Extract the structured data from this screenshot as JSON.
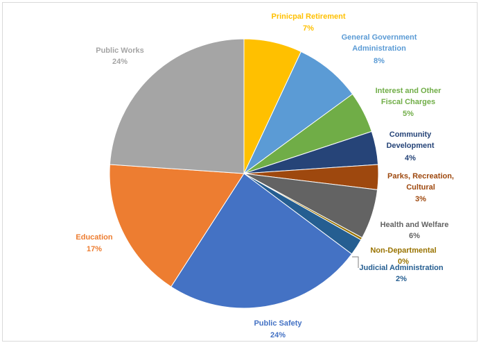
{
  "chart_data": {
    "type": "pie",
    "title": "",
    "start_angle_deg": 0,
    "direction": "clockwise",
    "slices": [
      {
        "name": "Prinicpal Retirement",
        "value": 7,
        "percent_label": "7%",
        "color": "#FFC000"
      },
      {
        "name": "General Government Administration",
        "value": 8,
        "percent_label": "8%",
        "color": "#5B9BD5"
      },
      {
        "name": "Interest and Other Fiscal Charges",
        "value": 5,
        "percent_label": "5%",
        "color": "#70AD47"
      },
      {
        "name": "Community Development",
        "value": 4,
        "percent_label": "4%",
        "color": "#264478"
      },
      {
        "name": "Parks, Recreation, Cultural",
        "value": 3,
        "percent_label": "3%",
        "color": "#9E480E"
      },
      {
        "name": "Health and Welfare",
        "value": 6,
        "percent_label": "6%",
        "color": "#636363"
      },
      {
        "name": "Non-Departmental",
        "value": 0.3,
        "percent_label": "0%",
        "color": "#997300"
      },
      {
        "name": "Judicial Administration",
        "value": 2,
        "percent_label": "2%",
        "color": "#255E91"
      },
      {
        "name": "Public Safety",
        "value": 24,
        "percent_label": "24%",
        "color": "#4472C4"
      },
      {
        "name": "Education",
        "value": 17,
        "percent_label": "17%",
        "color": "#ED7D31"
      },
      {
        "name": "Public Works",
        "value": 24,
        "percent_label": "24%",
        "color": "#A5A5A5"
      }
    ]
  }
}
